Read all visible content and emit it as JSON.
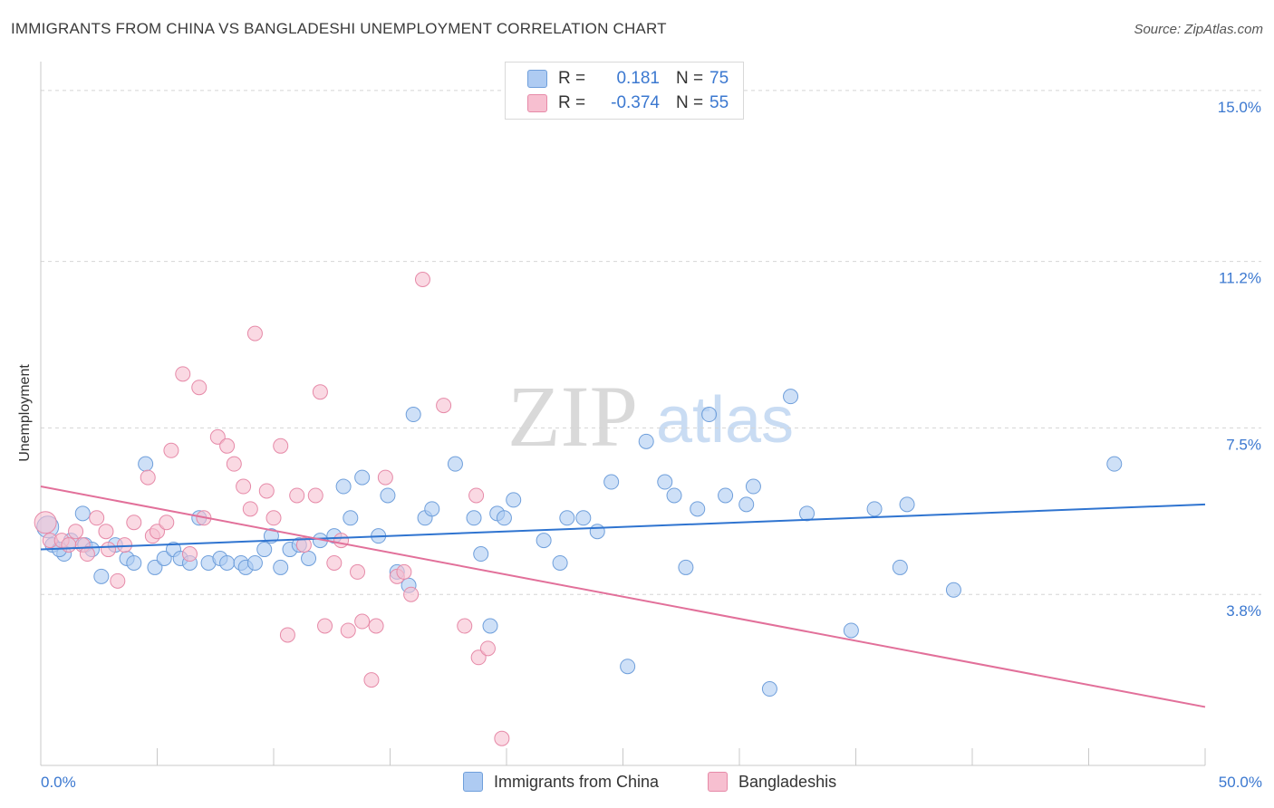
{
  "title": "IMMIGRANTS FROM CHINA VS BANGLADESHI UNEMPLOYMENT CORRELATION CHART",
  "source": "Source: ZipAtlas.com",
  "watermark": {
    "part1": "ZIP",
    "part2": "atlas"
  },
  "colors": {
    "china_fill": "#aecbf2",
    "china_stroke": "#6f9fdb",
    "china_line": "#2f74d0",
    "bangla_fill": "#f7bfd0",
    "bangla_stroke": "#e68aa8",
    "bangla_line": "#e2709a",
    "tick_label": "#3b78d0",
    "grid": "#d5d5d5"
  },
  "legend": {
    "rows": [
      {
        "r_label": "R =",
        "r_value": "0.181",
        "n_label": "N =",
        "n_value": "75"
      },
      {
        "r_label": "R =",
        "r_value": "-0.374",
        "n_label": "N =",
        "n_value": "55"
      }
    ]
  },
  "bottom_legend": {
    "china": "Immigrants from China",
    "bangla": "Bangladeshis"
  },
  "chart_data": {
    "type": "scatter",
    "ylabel": "Unemployment",
    "xlim": [
      0,
      50
    ],
    "ylim": [
      0,
      15.4
    ],
    "x_tick_labels": {
      "min": "0.0%",
      "max": "50.0%"
    },
    "y_ticks": [
      {
        "value": 3.8,
        "label": "3.8%"
      },
      {
        "value": 7.5,
        "label": "7.5%"
      },
      {
        "value": 11.2,
        "label": "11.2%"
      },
      {
        "value": 15.0,
        "label": "15.0%"
      }
    ],
    "grid": "horizontal dashed",
    "series": [
      {
        "name": "Immigrants from China",
        "trend": {
          "x": [
            0,
            50
          ],
          "y": [
            4.8,
            5.8
          ]
        },
        "points": [
          [
            0.3,
            5.3
          ],
          [
            0.5,
            4.9
          ],
          [
            1.0,
            4.7
          ],
          [
            1.3,
            5.0
          ],
          [
            1.8,
            5.6
          ],
          [
            1.9,
            4.9
          ],
          [
            2.2,
            4.8
          ],
          [
            2.6,
            4.2
          ],
          [
            3.2,
            4.9
          ],
          [
            3.7,
            4.6
          ],
          [
            4.0,
            4.5
          ],
          [
            4.5,
            6.7
          ],
          [
            4.9,
            4.4
          ],
          [
            5.3,
            4.6
          ],
          [
            5.7,
            4.8
          ],
          [
            6.0,
            4.6
          ],
          [
            6.4,
            4.5
          ],
          [
            6.8,
            5.5
          ],
          [
            7.2,
            4.5
          ],
          [
            7.7,
            4.6
          ],
          [
            8.0,
            4.5
          ],
          [
            8.6,
            4.5
          ],
          [
            8.8,
            4.4
          ],
          [
            9.2,
            4.5
          ],
          [
            9.6,
            4.8
          ],
          [
            9.9,
            5.1
          ],
          [
            10.3,
            4.4
          ],
          [
            10.7,
            4.8
          ],
          [
            11.1,
            4.9
          ],
          [
            11.5,
            4.6
          ],
          [
            12.0,
            5.0
          ],
          [
            12.6,
            5.1
          ],
          [
            13.0,
            6.2
          ],
          [
            13.3,
            5.5
          ],
          [
            13.8,
            6.4
          ],
          [
            14.5,
            5.1
          ],
          [
            14.9,
            6.0
          ],
          [
            15.3,
            4.3
          ],
          [
            15.8,
            4.0
          ],
          [
            16.0,
            7.8
          ],
          [
            16.5,
            5.5
          ],
          [
            16.8,
            5.7
          ],
          [
            17.8,
            6.7
          ],
          [
            18.6,
            5.5
          ],
          [
            18.9,
            4.7
          ],
          [
            19.3,
            3.1
          ],
          [
            19.6,
            5.6
          ],
          [
            19.9,
            5.5
          ],
          [
            20.3,
            5.9
          ],
          [
            21.6,
            5.0
          ],
          [
            22.3,
            4.5
          ],
          [
            22.6,
            5.5
          ],
          [
            23.3,
            5.5
          ],
          [
            23.9,
            5.2
          ],
          [
            24.5,
            6.3
          ],
          [
            25.2,
            2.2
          ],
          [
            26.0,
            7.2
          ],
          [
            26.8,
            6.3
          ],
          [
            27.2,
            6.0
          ],
          [
            27.7,
            4.4
          ],
          [
            28.2,
            5.7
          ],
          [
            28.7,
            7.8
          ],
          [
            29.4,
            6.0
          ],
          [
            30.3,
            5.8
          ],
          [
            30.6,
            6.2
          ],
          [
            31.3,
            1.7
          ],
          [
            32.2,
            8.2
          ],
          [
            32.9,
            5.6
          ],
          [
            34.8,
            3.0
          ],
          [
            35.8,
            5.7
          ],
          [
            36.9,
            4.4
          ],
          [
            37.2,
            5.8
          ],
          [
            39.2,
            3.9
          ],
          [
            46.1,
            6.7
          ],
          [
            0.8,
            4.8
          ]
        ]
      },
      {
        "name": "Bangladeshis",
        "trend": {
          "x": [
            0,
            50
          ],
          "y": [
            6.2,
            1.3
          ]
        },
        "points": [
          [
            0.2,
            5.4
          ],
          [
            0.4,
            5.0
          ],
          [
            0.9,
            5.0
          ],
          [
            1.2,
            4.9
          ],
          [
            1.5,
            5.2
          ],
          [
            1.8,
            4.9
          ],
          [
            2.0,
            4.7
          ],
          [
            2.4,
            5.5
          ],
          [
            2.8,
            5.2
          ],
          [
            2.9,
            4.8
          ],
          [
            3.3,
            4.1
          ],
          [
            3.6,
            4.9
          ],
          [
            4.0,
            5.4
          ],
          [
            4.6,
            6.4
          ],
          [
            4.8,
            5.1
          ],
          [
            5.0,
            5.2
          ],
          [
            5.4,
            5.4
          ],
          [
            5.6,
            7.0
          ],
          [
            6.1,
            8.7
          ],
          [
            6.4,
            4.7
          ],
          [
            6.8,
            8.4
          ],
          [
            7.0,
            5.5
          ],
          [
            7.6,
            7.3
          ],
          [
            8.0,
            7.1
          ],
          [
            8.3,
            6.7
          ],
          [
            8.7,
            6.2
          ],
          [
            9.0,
            5.7
          ],
          [
            9.2,
            9.6
          ],
          [
            9.7,
            6.1
          ],
          [
            10.0,
            5.5
          ],
          [
            10.3,
            7.1
          ],
          [
            10.6,
            2.9
          ],
          [
            11.0,
            6.0
          ],
          [
            11.3,
            4.9
          ],
          [
            11.8,
            6.0
          ],
          [
            12.0,
            8.3
          ],
          [
            12.2,
            3.1
          ],
          [
            12.6,
            4.5
          ],
          [
            12.9,
            5.0
          ],
          [
            13.2,
            3.0
          ],
          [
            13.6,
            4.3
          ],
          [
            13.8,
            3.2
          ],
          [
            14.2,
            1.9
          ],
          [
            14.4,
            3.1
          ],
          [
            14.8,
            6.4
          ],
          [
            15.3,
            4.2
          ],
          [
            15.6,
            4.3
          ],
          [
            15.9,
            3.8
          ],
          [
            16.4,
            10.8
          ],
          [
            17.3,
            8.0
          ],
          [
            18.2,
            3.1
          ],
          [
            18.7,
            6.0
          ],
          [
            18.8,
            2.4
          ],
          [
            19.2,
            2.6
          ],
          [
            19.8,
            0.6
          ]
        ]
      }
    ]
  }
}
